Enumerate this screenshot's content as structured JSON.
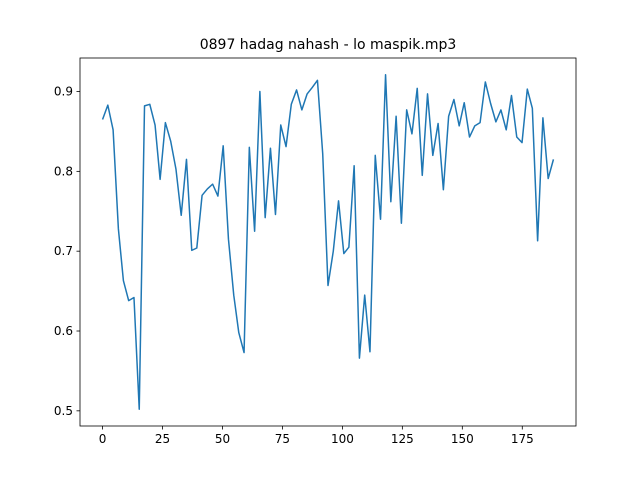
{
  "chart_data": {
    "type": "line",
    "title": "0897 hadag nahash - lo maspik.mp3",
    "color": "#1f77b4",
    "x": [
      0,
      2.2,
      4.4,
      6.6,
      8.7,
      10.9,
      13.1,
      15.3,
      17.5,
      19.7,
      21.9,
      24.0,
      26.2,
      28.4,
      30.6,
      32.8,
      35.0,
      37.2,
      39.3,
      41.5,
      43.7,
      45.9,
      48.1,
      50.3,
      52.5,
      54.7,
      56.8,
      59.0,
      61.2,
      63.4,
      65.6,
      67.8,
      70.0,
      72.1,
      74.3,
      76.5,
      78.7,
      80.9,
      83.1,
      85.3,
      87.4,
      89.6,
      91.8,
      94.0,
      96.2,
      98.4,
      100.6,
      102.7,
      104.9,
      107.1,
      109.3,
      111.5,
      113.7,
      115.9,
      118.0,
      120.2,
      122.4,
      124.6,
      126.8,
      129.0,
      131.2,
      133.3,
      135.5,
      137.7,
      139.9,
      142.1,
      144.3,
      146.5,
      148.7,
      150.8,
      153.0,
      155.2,
      157.4,
      159.6,
      161.8,
      164.0,
      166.1,
      168.3,
      170.5,
      172.7,
      174.9,
      177.1,
      179.2,
      181.4,
      183.6,
      185.8,
      188.0
    ],
    "values": [
      0.865,
      0.883,
      0.852,
      0.728,
      0.663,
      0.638,
      0.642,
      0.502,
      0.882,
      0.884,
      0.858,
      0.79,
      0.861,
      0.838,
      0.803,
      0.745,
      0.815,
      0.701,
      0.704,
      0.77,
      0.778,
      0.784,
      0.769,
      0.832,
      0.715,
      0.645,
      0.598,
      0.573,
      0.83,
      0.725,
      0.9,
      0.742,
      0.829,
      0.746,
      0.858,
      0.831,
      0.884,
      0.902,
      0.877,
      0.897,
      0.905,
      0.914,
      0.822,
      0.657,
      0.7,
      0.763,
      0.697,
      0.705,
      0.807,
      0.566,
      0.645,
      0.574,
      0.82,
      0.74,
      0.921,
      0.762,
      0.869,
      0.735,
      0.877,
      0.847,
      0.904,
      0.795,
      0.897,
      0.82,
      0.86,
      0.777,
      0.869,
      0.89,
      0.857,
      0.886,
      0.843,
      0.857,
      0.861,
      0.912,
      0.885,
      0.862,
      0.877,
      0.852,
      0.895,
      0.843,
      0.836,
      0.903,
      0.879,
      0.713,
      0.867,
      0.791,
      0.815
    ],
    "xlim": [
      -9.4,
      197.4
    ],
    "ylim": [
      0.481,
      0.942
    ],
    "xticks": [
      0,
      25,
      50,
      75,
      100,
      125,
      150,
      175
    ],
    "yticks": [
      0.5,
      0.6,
      0.7,
      0.8,
      0.9
    ]
  }
}
